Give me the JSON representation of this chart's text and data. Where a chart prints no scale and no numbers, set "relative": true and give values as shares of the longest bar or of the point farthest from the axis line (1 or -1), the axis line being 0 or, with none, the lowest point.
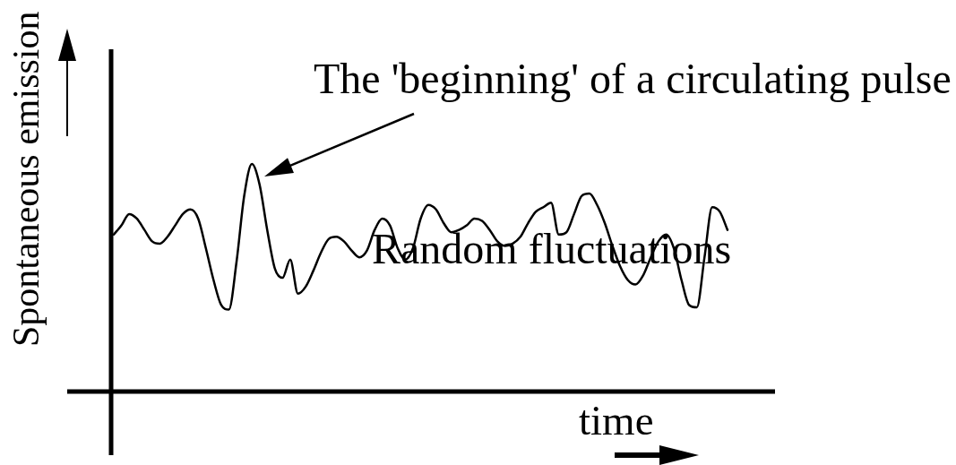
{
  "chart_data": {
    "type": "line",
    "relative": true,
    "xlabel": "time",
    "ylabel": "Spontaneous emission",
    "annotations": [
      "The 'beginning' of a circulating pulse",
      "Random fluctuations"
    ],
    "marker": "none",
    "line_style": "solid",
    "categories": [
      null,
      null,
      null,
      null,
      null,
      null,
      null,
      null,
      null,
      null,
      null,
      null,
      null,
      null,
      null,
      null,
      null,
      null,
      null,
      null,
      null,
      null,
      null,
      null,
      null,
      null,
      null,
      null,
      null,
      null,
      null,
      null,
      null,
      null,
      null,
      null,
      null,
      null,
      null,
      null,
      null,
      null,
      null,
      null,
      null,
      null,
      null,
      null,
      null,
      null,
      null,
      null,
      null,
      null,
      null,
      null,
      null,
      null,
      null,
      null,
      null,
      null,
      null,
      null,
      null,
      null,
      null,
      null,
      null,
      null,
      null,
      null,
      null,
      null,
      null,
      null,
      null,
      null,
      null,
      null,
      null
    ],
    "series": [
      {
        "color": "#000000",
        "values": [
          0.69,
          0.73,
          0.78,
          0.76,
          0.71,
          0.66,
          0.65,
          0.68,
          0.73,
          0.78,
          0.8,
          0.76,
          0.63,
          0.49,
          0.38,
          0.36,
          0.57,
          0.86,
          1,
          0.91,
          0.71,
          0.54,
          0.5,
          0.58,
          0.43,
          0.46,
          0.53,
          0.61,
          0.67,
          0.68,
          0.66,
          0.62,
          0.59,
          0.62,
          0.71,
          0.76,
          0.73,
          0.63,
          0.58,
          0.63,
          0.76,
          0.82,
          0.8,
          0.74,
          0.7,
          0.71,
          0.73,
          0.76,
          0.75,
          0.71,
          0.66,
          0.64,
          0.65,
          0.68,
          0.74,
          0.79,
          0.81,
          0.83,
          0.69,
          0.7,
          0.78,
          0.86,
          0.87,
          0.82,
          0.74,
          0.64,
          0.55,
          0.49,
          0.47,
          0.51,
          0.59,
          0.66,
          0.69,
          0.63,
          0.49,
          0.38,
          0.37,
          0.59,
          0.81,
          0.79,
          0.71
        ]
      }
    ]
  }
}
